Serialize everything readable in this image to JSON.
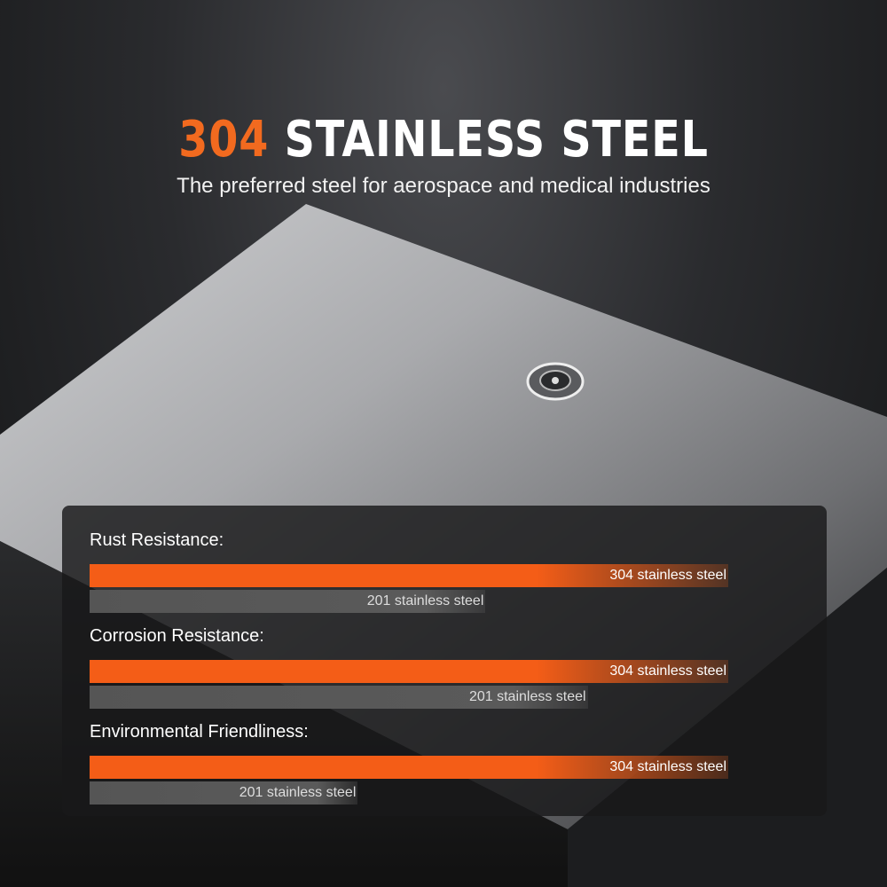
{
  "header": {
    "title_accent": "304",
    "title_rest": " STAINLESS STEEL",
    "subtitle": "The preferred steel for aerospace and medical industries"
  },
  "colors": {
    "accent": "#f45d17",
    "secondary_bar": "#555555"
  },
  "lock_icon": "keyhole-lock-icon",
  "comparisons": [
    {
      "label": "Rust Resistance:",
      "bars": [
        {
          "name": "304 stainless steel",
          "level": 1.0
        },
        {
          "name": "201 stainless steel",
          "level": 0.62
        }
      ]
    },
    {
      "label": "Corrosion Resistance:",
      "bars": [
        {
          "name": "304 stainless steel",
          "level": 1.0
        },
        {
          "name": "201 stainless steel",
          "level": 0.78
        }
      ]
    },
    {
      "label": "Environmental Friendliness:",
      "bars": [
        {
          "name": "304 stainless steel",
          "level": 1.0
        },
        {
          "name": "201 stainless steel",
          "level": 0.42
        }
      ]
    }
  ]
}
